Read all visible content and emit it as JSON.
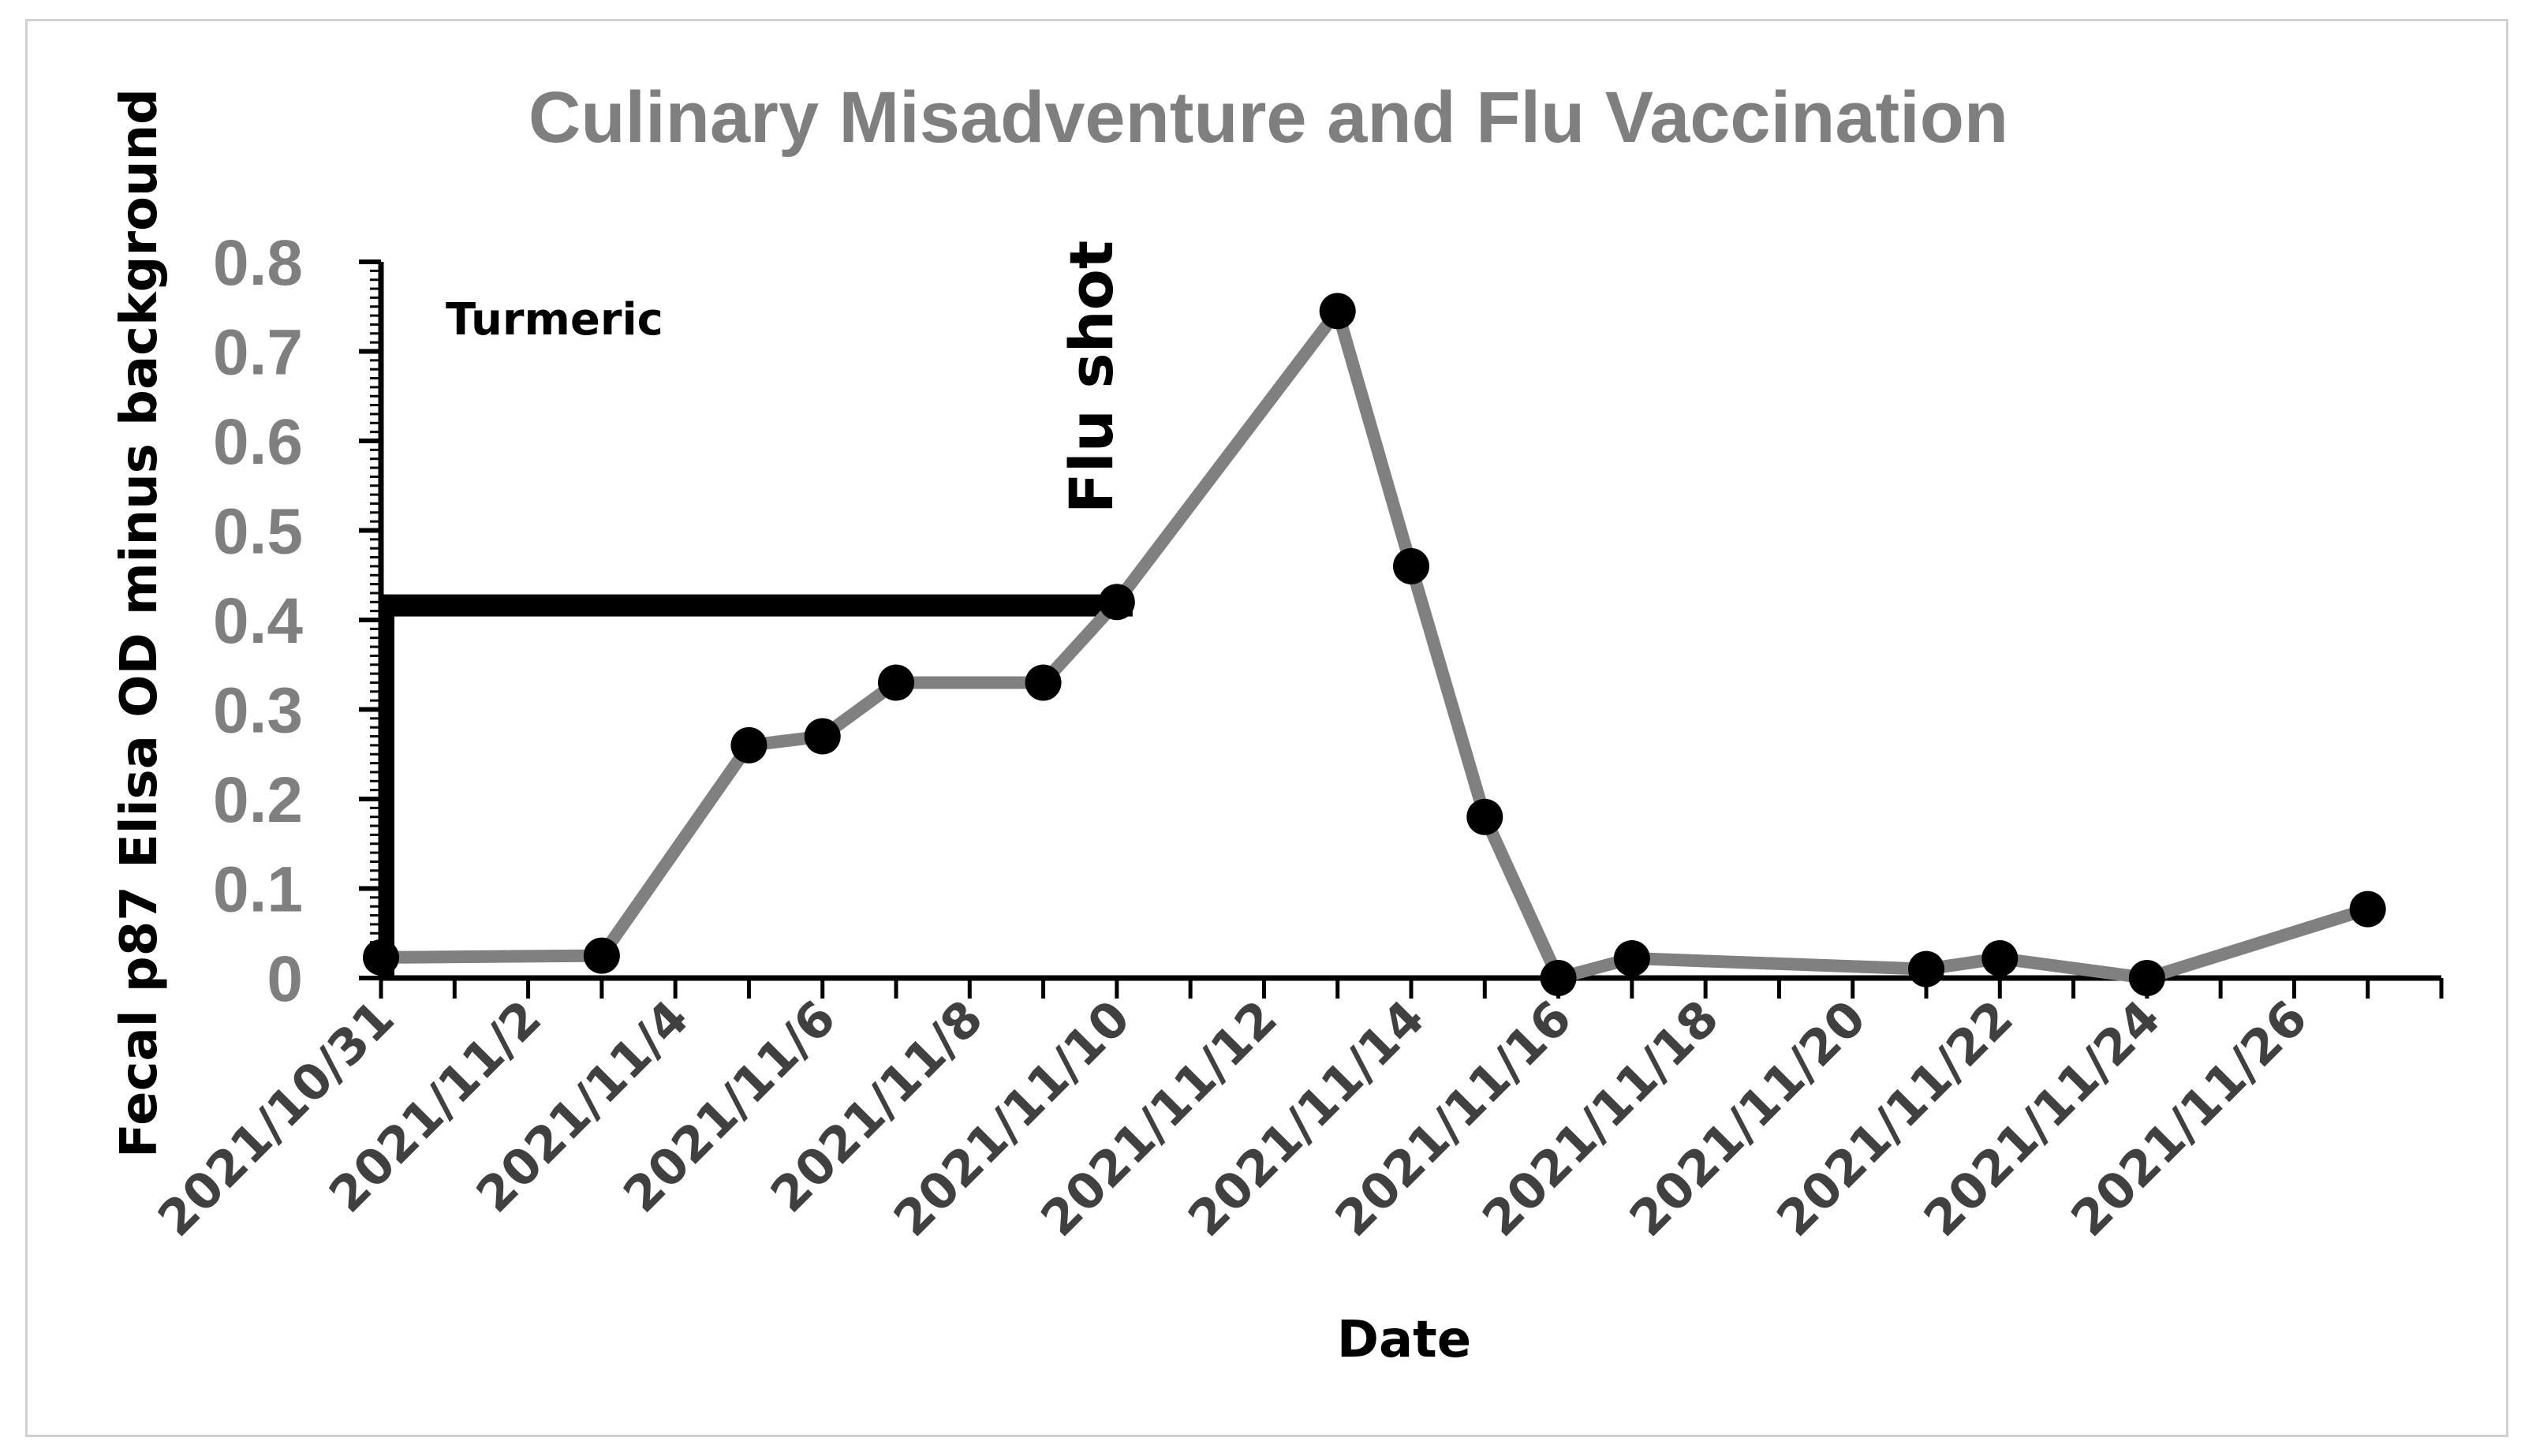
{
  "chart_data": {
    "type": "line",
    "title": "Culinary Misadventure and Flu Vaccination",
    "xlabel": "Date",
    "ylabel": "Fecal p87 Elisa OD minus background",
    "ylim": [
      0,
      0.8
    ],
    "yticks": [
      "0",
      "0.1",
      "0.2",
      "0.3",
      "0.4",
      "0.5",
      "0.6",
      "0.7",
      "0.8"
    ],
    "xlim": [
      "2021/10/31",
      "2021/11/28"
    ],
    "xtick_labels": [
      "2021/10/31",
      "2021/11/2",
      "2021/11/4",
      "2021/11/6",
      "2021/11/8",
      "2021/11/10",
      "2021/11/12",
      "2021/11/14",
      "2021/11/16",
      "2021/11/18",
      "2021/11/20",
      "2021/11/22",
      "2021/11/24",
      "2021/11/26"
    ],
    "grid": false,
    "legend": "none",
    "line_color": "#808080",
    "marker_color": "#000000",
    "series": [
      {
        "x": [
          "2021/10/31",
          "2021/11/3",
          "2021/11/5",
          "2021/11/6",
          "2021/11/7",
          "2021/11/9",
          "2021/11/10",
          "2021/11/13",
          "2021/11/14",
          "2021/11/15",
          "2021/11/16",
          "2021/11/17",
          "2021/11/21",
          "2021/11/22",
          "2021/11/24",
          "2021/11/27"
        ],
        "values": [
          0.023,
          0.025,
          0.26,
          0.27,
          0.33,
          0.33,
          0.42,
          0.745,
          0.46,
          0.18,
          0.0,
          0.022,
          0.01,
          0.022,
          0.0,
          0.077
        ]
      }
    ],
    "annotations": {
      "turmeric": {
        "label": "Turmeric",
        "start": "2021/10/31",
        "end": "2021/11/10",
        "level": 0.41,
        "color": "#000000"
      },
      "flu_shot": {
        "label": "Flu shot",
        "date": "2021/11/10"
      }
    }
  }
}
